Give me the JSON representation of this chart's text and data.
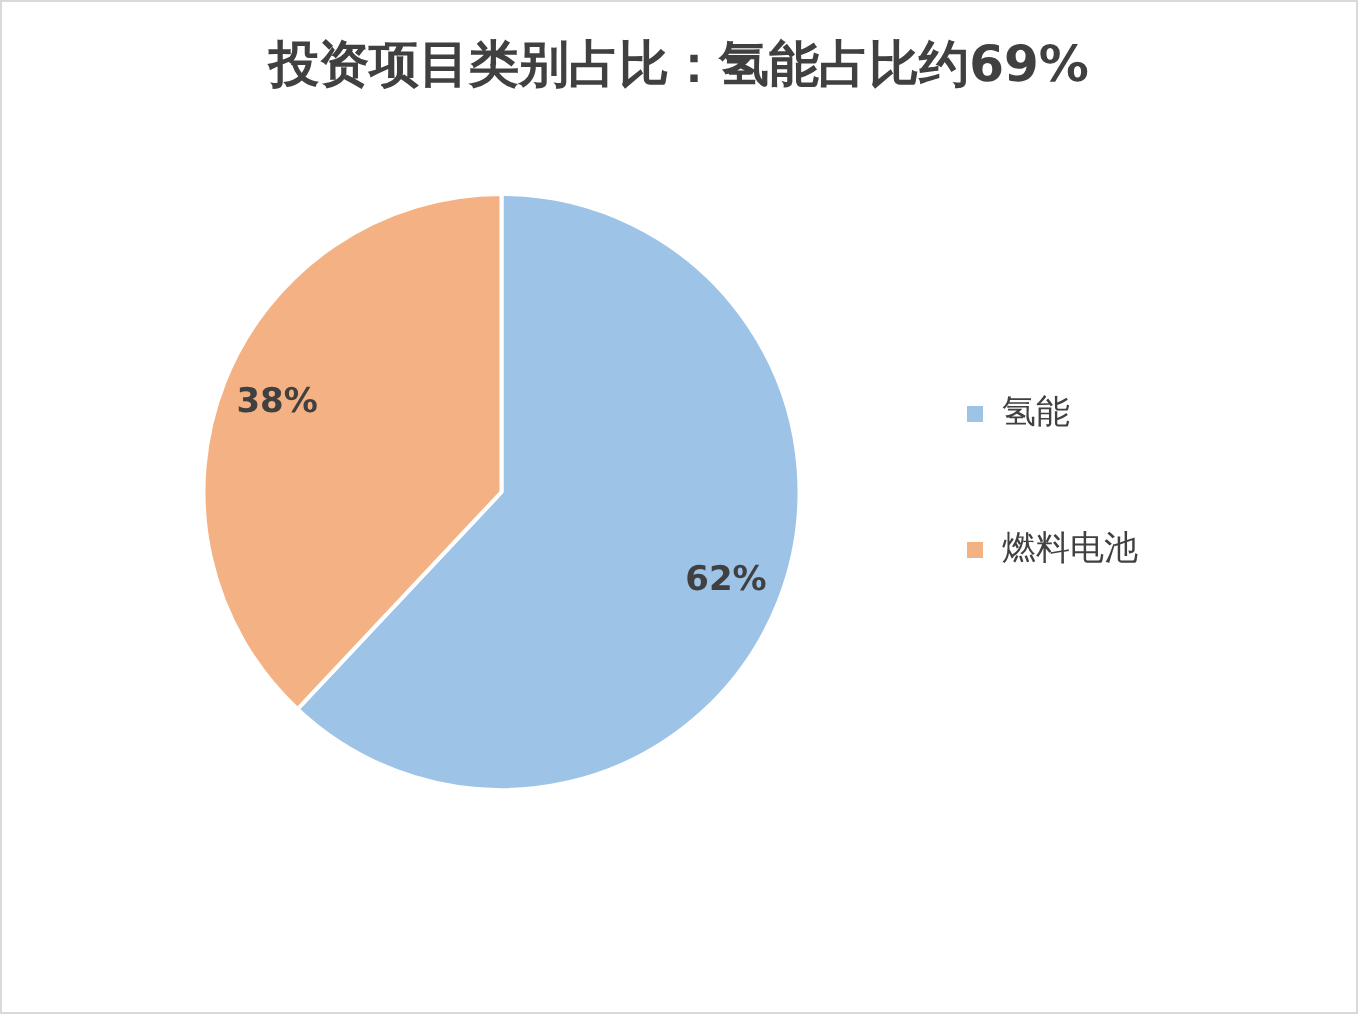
{
  "chart_data": {
    "type": "pie",
    "title": "投资项目类别占比：氢能占比约69%",
    "categories": [
      "氢能",
      "燃料电池"
    ],
    "values": [
      62,
      38
    ],
    "colors": [
      "#9dc3e6",
      "#f4b183"
    ],
    "value_labels": [
      "62%",
      "38%"
    ],
    "legend": "right"
  }
}
